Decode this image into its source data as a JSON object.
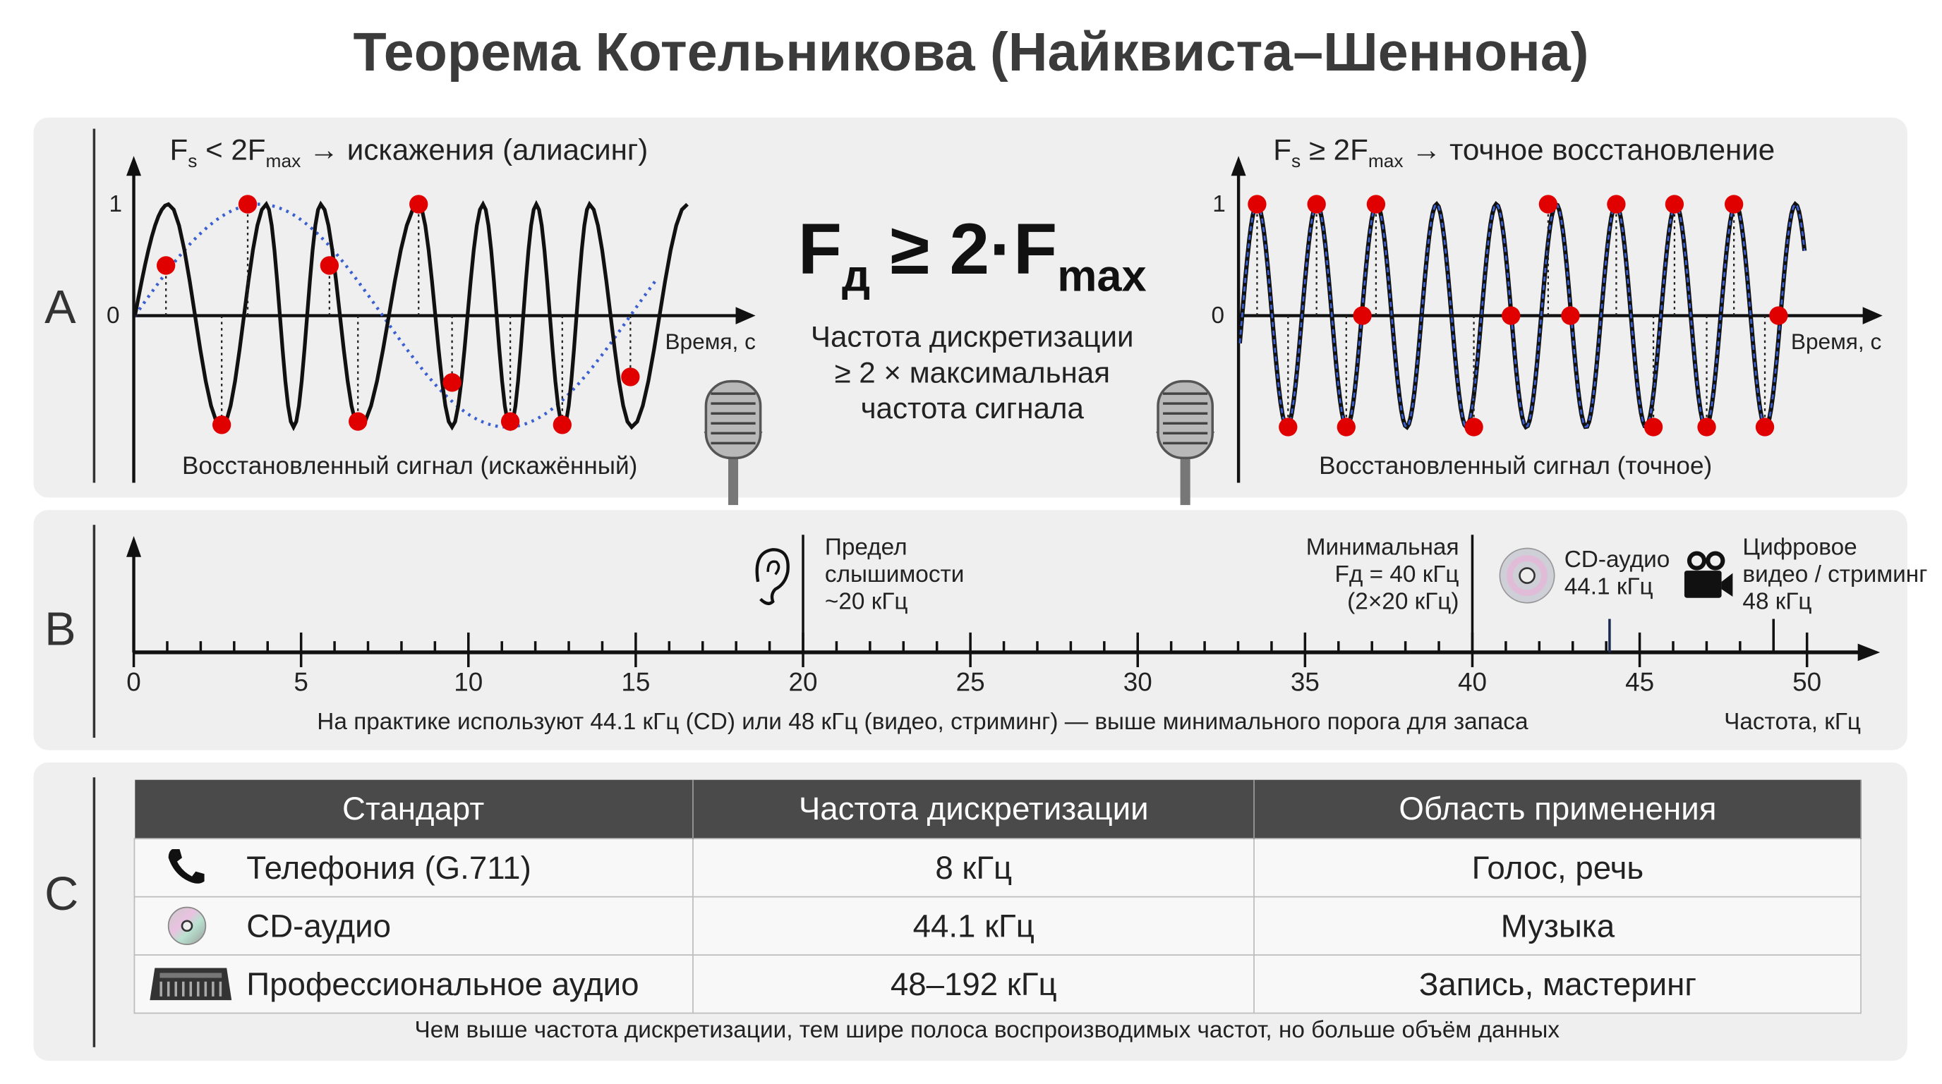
{
  "title": "Теорема Котельникова (Найквиста–Шеннона)",
  "panel_a": {
    "letter": "A",
    "left_chart": {
      "caption_prefix": "F",
      "caption_s": "s",
      "caption_mid": " < 2F",
      "caption_max": "max",
      "caption_suffix": " → искажения (алиасинг)",
      "y_tick_1": "1",
      "y_tick_0": "0",
      "x_label": "Время, с",
      "bottom_label": "Восстановленный сигнал (искажённый)"
    },
    "formula": {
      "f": "F",
      "d": "д",
      "mid": " ≥ 2·F",
      "max": "max"
    },
    "formula_text": [
      "Частота дискретизации",
      "≥ 2 × максимальная",
      "частота сигнала"
    ],
    "right_chart": {
      "caption_prefix": "F",
      "caption_s": "s",
      "caption_mid": " ≥ 2F",
      "caption_max": "max",
      "caption_suffix": " → точное восстановление",
      "y_tick_1": "1",
      "y_tick_0": "0",
      "x_label": "Время, с",
      "bottom_label": "Восстановленный сигнал (точное)"
    },
    "colors": {
      "signal": "#111111",
      "samples": "#e00000",
      "reconstructed": "#3a5fd0"
    }
  },
  "panel_b": {
    "letter": "B",
    "axis": {
      "min": 0,
      "max": 50,
      "major_ticks": [
        "0",
        "5",
        "10",
        "15",
        "20",
        "25",
        "30",
        "35",
        "40",
        "45",
        "50"
      ],
      "label": "Частота, кГц"
    },
    "markers": [
      {
        "value": 20,
        "lines": [
          "Предел",
          "слышимости",
          "~20 кГц"
        ],
        "icon": "ear-icon"
      },
      {
        "value": 40,
        "lines": [
          "Минимальная",
          "Fд = 40 кГц",
          "(2×20 кГц)"
        ]
      },
      {
        "value": 44.1,
        "lines": [
          "CD-аудио",
          "44.1 кГц"
        ],
        "icon": "cd-icon"
      },
      {
        "value": 48,
        "lines": [
          "Цифровое",
          "видео / стриминг",
          "48 кГц"
        ],
        "icon": "video-camera-icon"
      }
    ],
    "note": "На практике используют 44.1 кГц (CD) или 48 кГц (видео, стриминг) — выше минимального порога для запаса"
  },
  "panel_c": {
    "letter": "C",
    "headers": [
      "Стандарт",
      "Частота дискретизации",
      "Область применения"
    ],
    "rows": [
      {
        "icon": "phone-icon",
        "standard": "Телефония (G.711)",
        "rate": "8 кГц",
        "use": "Голос, речь"
      },
      {
        "icon": "cd-icon",
        "standard": "CD-аудио",
        "rate": "44.1 кГц",
        "use": "Музыка"
      },
      {
        "icon": "mixing-console-icon",
        "standard": "Профессиональное аудио",
        "rate": "48–192 кГц",
        "use": "Запись, мастеринг"
      }
    ],
    "note": "Чем выше частота дискретизации, тем шире полоса воспроизводимых частот, но больше объём данных"
  }
}
